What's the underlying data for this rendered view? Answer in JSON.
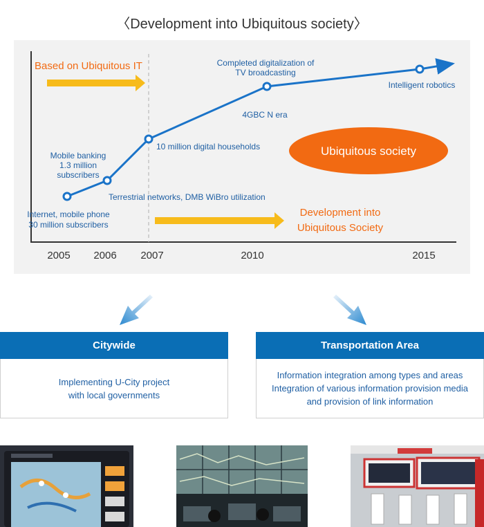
{
  "title": "〈Development into Ubiquitous society〉",
  "chart_data": {
    "type": "line",
    "years": [
      "2005",
      "2006",
      "2007",
      "2010",
      "2015"
    ],
    "milestones": [
      {
        "year": "2005",
        "label_lines": [
          "Internet, mobile phone",
          "30 million subscribers"
        ]
      },
      {
        "year": "2006",
        "label_lines": [
          "Mobile banking",
          "1.3 million",
          "subscribers"
        ]
      },
      {
        "year": "2007",
        "label_lines": [
          "10 million digital households"
        ]
      },
      {
        "year": "2010",
        "label_lines": [
          "Completed digitalization of",
          "TV broadcasting"
        ]
      },
      {
        "year": "2015",
        "label_lines": [
          "Intelligent robotics"
        ]
      }
    ],
    "annotations": {
      "terrestrial": "Terrestrial networks, DMB WiBro utilization",
      "n_era": "4GBC N era",
      "based_on": "Based on Ubiquitous IT",
      "development_line1": "Development into",
      "development_line2": "Ubiquitous Society",
      "ubiquitous_society": "Ubiquitous society"
    },
    "colors": {
      "line": "#1a73c8",
      "arrow": "#f7bb1b",
      "accent": "#f26a12",
      "text": "#1f5fa3"
    }
  },
  "boxes": [
    {
      "title": "Citywide",
      "lines": [
        "Implementing U-City project",
        "with local governments"
      ]
    },
    {
      "title": "Transportation Area",
      "lines": [
        "Information integration among types and areas",
        "Integration of various information provision media",
        "and provision of link information"
      ]
    }
  ],
  "photos": [
    "navigation-device-photo",
    "control-room-photo",
    "kiosk-photo"
  ]
}
